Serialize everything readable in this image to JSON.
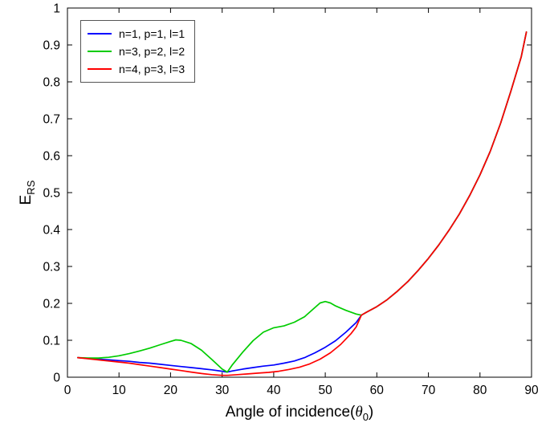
{
  "figure": {
    "xlabel": {
      "prefix": "Angle of incidence(",
      "theta": "θ",
      "sub": "0",
      "suffix": ")"
    },
    "ylabel": {
      "main": "E",
      "sub": "RS"
    }
  },
  "chart_data": {
    "type": "line",
    "title": "",
    "xlabel": "Angle of incidence(θ_0)",
    "ylabel": "E_RS",
    "xlim": [
      0,
      90
    ],
    "ylim": [
      0,
      1
    ],
    "xticks": [
      0,
      10,
      20,
      30,
      40,
      50,
      60,
      70,
      80,
      90
    ],
    "xtick_labels": [
      "0",
      "10",
      "20",
      "30",
      "40",
      "50",
      "60",
      "70",
      "80",
      "90"
    ],
    "yticks": [
      0,
      0.1,
      0.2,
      0.3,
      0.4,
      0.5,
      0.6,
      0.7,
      0.8,
      0.9,
      1
    ],
    "ytick_labels": [
      "0",
      "0.1",
      "0.2",
      "0.3",
      "0.4",
      "0.5",
      "0.6",
      "0.7",
      "0.8",
      "0.9",
      "1"
    ],
    "grid": false,
    "legend_position": "top-left",
    "series": [
      {
        "name": "n=1, p=1, l=1",
        "color": "#0000ff",
        "points": [
          [
            2,
            0.053
          ],
          [
            4,
            0.051
          ],
          [
            6,
            0.049
          ],
          [
            8,
            0.047
          ],
          [
            10,
            0.045
          ],
          [
            12,
            0.043
          ],
          [
            14,
            0.04
          ],
          [
            16,
            0.038
          ],
          [
            18,
            0.035
          ],
          [
            20,
            0.032
          ],
          [
            22,
            0.029
          ],
          [
            24,
            0.026
          ],
          [
            26,
            0.023
          ],
          [
            28,
            0.02
          ],
          [
            30,
            0.016
          ],
          [
            31,
            0.014
          ],
          [
            32,
            0.017
          ],
          [
            34,
            0.022
          ],
          [
            36,
            0.026
          ],
          [
            38,
            0.03
          ],
          [
            40,
            0.033
          ],
          [
            42,
            0.038
          ],
          [
            44,
            0.044
          ],
          [
            46,
            0.053
          ],
          [
            48,
            0.066
          ],
          [
            50,
            0.081
          ],
          [
            52,
            0.099
          ],
          [
            54,
            0.122
          ],
          [
            56,
            0.148
          ],
          [
            57,
            0.168
          ],
          [
            58,
            0.176
          ],
          [
            60,
            0.191
          ],
          [
            62,
            0.21
          ],
          [
            64,
            0.233
          ],
          [
            66,
            0.259
          ],
          [
            68,
            0.289
          ],
          [
            70,
            0.322
          ],
          [
            72,
            0.358
          ],
          [
            74,
            0.398
          ],
          [
            76,
            0.442
          ],
          [
            78,
            0.492
          ],
          [
            80,
            0.548
          ],
          [
            82,
            0.612
          ],
          [
            84,
            0.688
          ],
          [
            86,
            0.775
          ],
          [
            88,
            0.868
          ],
          [
            89,
            0.935
          ]
        ]
      },
      {
        "name": "n=3, p=2, l=2",
        "color": "#00cc00",
        "points": [
          [
            2,
            0.053
          ],
          [
            4,
            0.052
          ],
          [
            6,
            0.052
          ],
          [
            8,
            0.054
          ],
          [
            10,
            0.058
          ],
          [
            12,
            0.064
          ],
          [
            14,
            0.071
          ],
          [
            16,
            0.079
          ],
          [
            18,
            0.088
          ],
          [
            20,
            0.097
          ],
          [
            21,
            0.101
          ],
          [
            22,
            0.1
          ],
          [
            24,
            0.091
          ],
          [
            26,
            0.073
          ],
          [
            28,
            0.048
          ],
          [
            30,
            0.022
          ],
          [
            31,
            0.014
          ],
          [
            32,
            0.034
          ],
          [
            34,
            0.068
          ],
          [
            36,
            0.099
          ],
          [
            38,
            0.122
          ],
          [
            40,
            0.134
          ],
          [
            42,
            0.139
          ],
          [
            44,
            0.149
          ],
          [
            46,
            0.164
          ],
          [
            48,
            0.189
          ],
          [
            49,
            0.201
          ],
          [
            50,
            0.205
          ],
          [
            51,
            0.201
          ],
          [
            52,
            0.193
          ],
          [
            54,
            0.181
          ],
          [
            56,
            0.171
          ],
          [
            57,
            0.168
          ],
          [
            58,
            0.176
          ],
          [
            60,
            0.191
          ],
          [
            62,
            0.21
          ],
          [
            64,
            0.233
          ],
          [
            66,
            0.259
          ],
          [
            68,
            0.289
          ],
          [
            70,
            0.322
          ],
          [
            72,
            0.358
          ],
          [
            74,
            0.398
          ],
          [
            76,
            0.442
          ],
          [
            78,
            0.492
          ],
          [
            80,
            0.548
          ],
          [
            82,
            0.612
          ],
          [
            84,
            0.688
          ],
          [
            86,
            0.775
          ],
          [
            88,
            0.868
          ],
          [
            89,
            0.935
          ]
        ]
      },
      {
        "name": "n=4, p=3, l=3",
        "color": "#ff0000",
        "points": [
          [
            2,
            0.053
          ],
          [
            4,
            0.05
          ],
          [
            6,
            0.047
          ],
          [
            8,
            0.044
          ],
          [
            10,
            0.041
          ],
          [
            12,
            0.038
          ],
          [
            14,
            0.034
          ],
          [
            16,
            0.03
          ],
          [
            18,
            0.026
          ],
          [
            20,
            0.022
          ],
          [
            22,
            0.018
          ],
          [
            24,
            0.014
          ],
          [
            26,
            0.01
          ],
          [
            28,
            0.007
          ],
          [
            30,
            0.005
          ],
          [
            31,
            0.005
          ],
          [
            33,
            0.007
          ],
          [
            35,
            0.009
          ],
          [
            37,
            0.011
          ],
          [
            39,
            0.013
          ],
          [
            41,
            0.016
          ],
          [
            43,
            0.021
          ],
          [
            45,
            0.027
          ],
          [
            47,
            0.036
          ],
          [
            49,
            0.049
          ],
          [
            51,
            0.066
          ],
          [
            53,
            0.089
          ],
          [
            55,
            0.118
          ],
          [
            56,
            0.136
          ],
          [
            57,
            0.168
          ],
          [
            58,
            0.176
          ],
          [
            60,
            0.191
          ],
          [
            62,
            0.21
          ],
          [
            64,
            0.233
          ],
          [
            66,
            0.259
          ],
          [
            68,
            0.289
          ],
          [
            70,
            0.322
          ],
          [
            72,
            0.358
          ],
          [
            74,
            0.398
          ],
          [
            76,
            0.442
          ],
          [
            78,
            0.492
          ],
          [
            80,
            0.548
          ],
          [
            82,
            0.612
          ],
          [
            84,
            0.688
          ],
          [
            86,
            0.775
          ],
          [
            88,
            0.868
          ],
          [
            89,
            0.935
          ]
        ]
      }
    ]
  }
}
